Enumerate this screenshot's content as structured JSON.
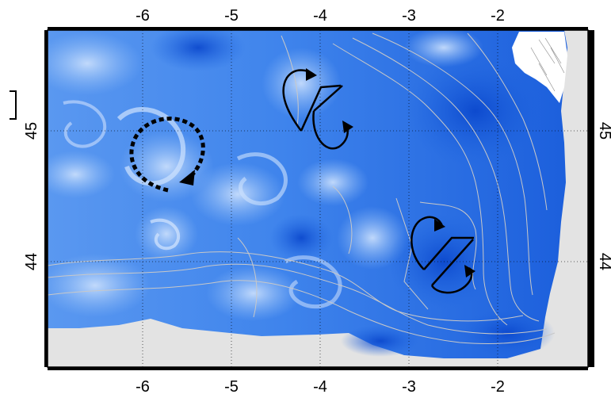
{
  "map": {
    "longitude_ticks": [
      "-6",
      "-5",
      "-4",
      "-3",
      "-2"
    ],
    "latitude_ticks_left": [
      "45",
      "44"
    ],
    "latitude_ticks_right": [
      "45",
      "44"
    ],
    "colors": {
      "ocean_deep": "#0a4fd6",
      "ocean_mid": "#2e78ea",
      "ocean_light": "#a9cdfb",
      "land": "#e3e3e3",
      "bathymetry_contour": "#c8c8c8",
      "grid": "#000000",
      "eddy_arrow": "#000000"
    },
    "features": {
      "eddy_anticyclonic_dashed": "dashed-circular-arrow",
      "eddy_pair_north": "solid-loop-arrows",
      "eddy_pair_south": "solid-loop-arrows"
    }
  }
}
